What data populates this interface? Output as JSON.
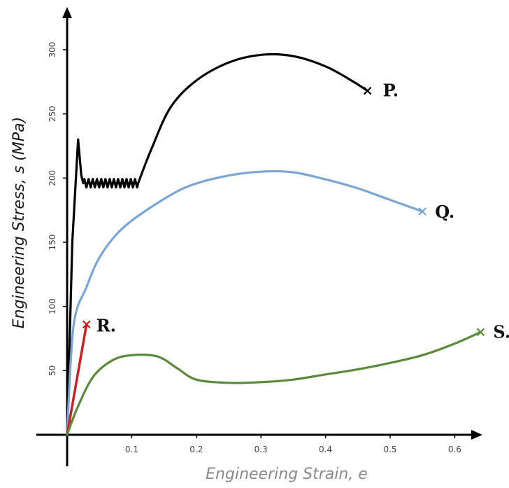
{
  "chart_data": {
    "type": "line",
    "title": "",
    "xlabel": "Engineering Strain, e",
    "ylabel": "Engineering Stress, s (MPa)",
    "xlim": [
      0,
      0.65
    ],
    "ylim": [
      0,
      330
    ],
    "x_ticks": [
      "0.1",
      "0.2",
      "0.3",
      "0.4",
      "0.5",
      "0.6"
    ],
    "y_ticks": [
      "50",
      "100",
      "150",
      "200",
      "250",
      "300"
    ],
    "grid": false,
    "colors": {
      "P": "#000000",
      "Q": "#7aa6d6",
      "R": "#cc1f1f",
      "S": "#5b8a3c",
      "axis": "#000000"
    },
    "series": [
      {
        "name": "P.",
        "fracture_marker": "x",
        "points": [
          [
            0,
            0
          ],
          [
            0.008,
            150
          ],
          [
            0.017,
            230
          ],
          [
            0.022,
            202
          ],
          [
            0.025,
            196
          ],
          [
            0.11,
            196
          ],
          [
            0.13,
            222
          ],
          [
            0.16,
            255
          ],
          [
            0.2,
            276
          ],
          [
            0.25,
            290
          ],
          [
            0.3,
            296
          ],
          [
            0.35,
            295
          ],
          [
            0.4,
            287
          ],
          [
            0.44,
            276
          ],
          [
            0.465,
            268
          ]
        ]
      },
      {
        "name": "Q.",
        "fracture_marker": "x",
        "points": [
          [
            0,
            0
          ],
          [
            0.01,
            85
          ],
          [
            0.03,
            115
          ],
          [
            0.05,
            138
          ],
          [
            0.08,
            158
          ],
          [
            0.12,
            174
          ],
          [
            0.18,
            192
          ],
          [
            0.24,
            201
          ],
          [
            0.3,
            205
          ],
          [
            0.35,
            204.5
          ],
          [
            0.4,
            199
          ],
          [
            0.45,
            192
          ],
          [
            0.5,
            183
          ],
          [
            0.55,
            174
          ]
        ]
      },
      {
        "name": "R.",
        "fracture_marker": "x",
        "points": [
          [
            0,
            0
          ],
          [
            0.03,
            86
          ]
        ]
      },
      {
        "name": "S.",
        "fracture_marker": "x",
        "points": [
          [
            0,
            0
          ],
          [
            0.015,
            20
          ],
          [
            0.04,
            45
          ],
          [
            0.07,
            58
          ],
          [
            0.1,
            62
          ],
          [
            0.14,
            61
          ],
          [
            0.17,
            52
          ],
          [
            0.2,
            43
          ],
          [
            0.25,
            40.5
          ],
          [
            0.3,
            41
          ],
          [
            0.35,
            43
          ],
          [
            0.4,
            47
          ],
          [
            0.45,
            51
          ],
          [
            0.5,
            56
          ],
          [
            0.55,
            62
          ],
          [
            0.6,
            71
          ],
          [
            0.64,
            80
          ]
        ]
      }
    ]
  }
}
